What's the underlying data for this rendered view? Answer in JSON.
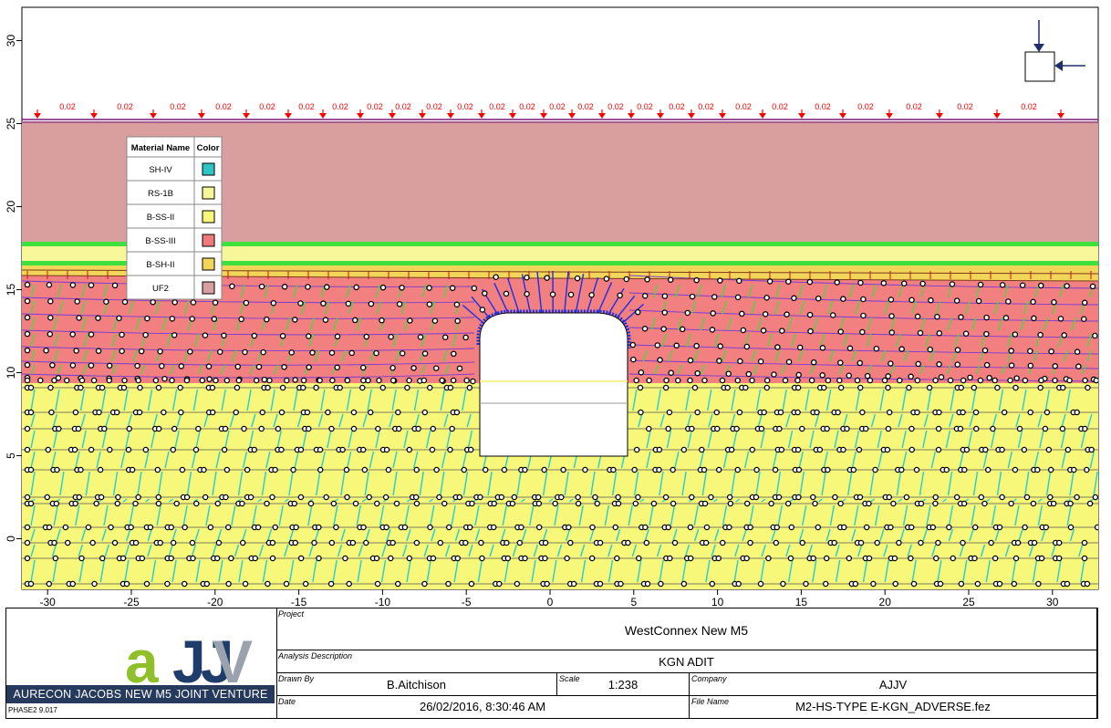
{
  "load": {
    "value_label": "0.02",
    "label_positions_x": [
      74,
      137,
      195,
      245,
      293,
      336,
      373,
      411,
      442,
      476,
      510,
      545,
      578,
      611,
      642,
      675,
      707,
      742,
      774,
      815,
      855,
      902,
      949,
      1002,
      1058,
      1128
    ]
  },
  "axes": {
    "x_ticks": [
      -30,
      -25,
      -20,
      -15,
      -10,
      -5,
      0,
      5,
      10,
      15,
      20,
      25,
      30
    ],
    "y_ticks": [
      0,
      5,
      10,
      15,
      20,
      25,
      30
    ]
  },
  "legend": {
    "headers": [
      "Material Name",
      "Color"
    ],
    "rows": [
      {
        "name": "SH-IV",
        "color": "#2ec4c4"
      },
      {
        "name": "RS-1B",
        "color": "#f7f79a"
      },
      {
        "name": "B-SS-II",
        "color": "#f7f77a"
      },
      {
        "name": "B-SS-III",
        "color": "#f07a7a"
      },
      {
        "name": "B-SH-II",
        "color": "#f2d65a"
      },
      {
        "name": "UF2",
        "color": "#d99e9e"
      }
    ]
  },
  "colors": {
    "uf2": "#d99e9e",
    "bss3": "#f28080",
    "bss2": "#f7f77a",
    "green": "#3de03d",
    "cyan": "#22cdd4",
    "load_red": "#ff0000",
    "bolt_blue": "#1a2ee6",
    "purple": "#7a3ad6"
  },
  "titleblock": {
    "venture_text": "AURECON JACOBS NEW M5 JOINT VENTURE",
    "version": "PHASE2 9.017",
    "project_label": "Project",
    "project": "WestConnex New M5",
    "analysis_label": "Analysis Description",
    "analysis": "KGN ADIT",
    "drawn_label": "Drawn By",
    "drawn": "B.Aitchison",
    "scale_label": "Scale",
    "scale": "1:238",
    "company_label": "Company",
    "company": "AJJV",
    "date_label": "Date",
    "date": "26/02/2016, 8:30:46 AM",
    "file_label": "File Name",
    "file": "M2-HS-TYPE E-KGN_ADVERSE.fez"
  }
}
